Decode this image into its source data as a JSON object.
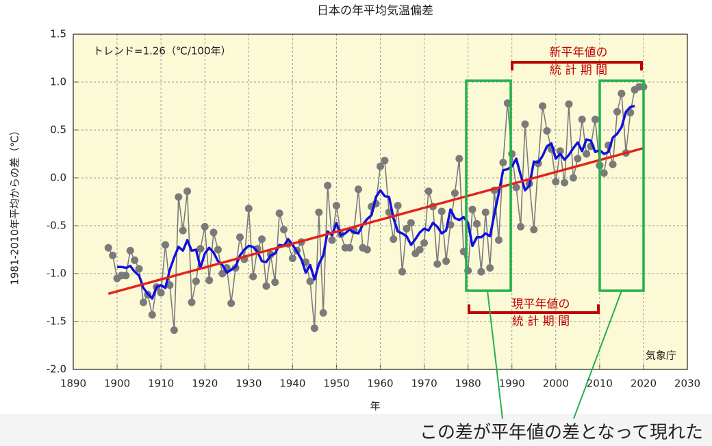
{
  "chart_data": {
    "type": "line",
    "title": "日本の年平均気温偏差",
    "xlabel": "年",
    "ylabel": "1981-2010年平均からの差（℃）",
    "x": [
      1898,
      1899,
      1900,
      1901,
      1902,
      1903,
      1904,
      1905,
      1906,
      1907,
      1908,
      1909,
      1910,
      1911,
      1912,
      1913,
      1914,
      1915,
      1916,
      1917,
      1918,
      1919,
      1920,
      1921,
      1922,
      1923,
      1924,
      1925,
      1926,
      1927,
      1928,
      1929,
      1930,
      1931,
      1932,
      1933,
      1934,
      1935,
      1936,
      1937,
      1938,
      1939,
      1940,
      1941,
      1942,
      1943,
      1944,
      1945,
      1946,
      1947,
      1948,
      1949,
      1950,
      1951,
      1952,
      1953,
      1954,
      1955,
      1956,
      1957,
      1958,
      1959,
      1960,
      1961,
      1962,
      1963,
      1964,
      1965,
      1966,
      1967,
      1968,
      1969,
      1970,
      1971,
      1972,
      1973,
      1974,
      1975,
      1976,
      1977,
      1978,
      1979,
      1980,
      1981,
      1982,
      1983,
      1984,
      1985,
      1986,
      1987,
      1988,
      1989,
      1990,
      1991,
      1992,
      1993,
      1994,
      1995,
      1996,
      1997,
      1998,
      1999,
      2000,
      2001,
      2002,
      2003,
      2004,
      2005,
      2006,
      2007,
      2008,
      2009,
      2010,
      2011,
      2012,
      2013,
      2014,
      2015,
      2016,
      2017,
      2018,
      2019,
      2020
    ],
    "series": [
      {
        "color": "#7a7a7a",
        "markers": true,
        "values": [
          -0.73,
          -0.81,
          -1.05,
          -1.02,
          -1.02,
          -0.76,
          -0.86,
          -0.95,
          -1.3,
          -1.22,
          -1.43,
          -1.14,
          -1.2,
          -0.7,
          -1.12,
          -1.59,
          -0.2,
          -0.55,
          -0.14,
          -1.3,
          -1.08,
          -0.74,
          -0.51,
          -1.07,
          -0.57,
          -0.75,
          -1.0,
          -0.94,
          -1.31,
          -0.94,
          -0.62,
          -0.85,
          -0.32,
          -1.03,
          -0.74,
          -0.64,
          -1.13,
          -0.8,
          -1.09,
          -0.37,
          -0.54,
          -0.69,
          -0.84,
          -0.76,
          -0.67,
          -0.88,
          -1.08,
          -1.57,
          -0.36,
          -1.41,
          -0.08,
          -0.65,
          -0.29,
          -0.59,
          -0.73,
          -0.73,
          -0.55,
          -0.12,
          -0.73,
          -0.75,
          -0.3,
          -0.27,
          0.12,
          0.18,
          -0.36,
          -0.64,
          -0.29,
          -0.98,
          -0.53,
          -0.47,
          -0.79,
          -0.75,
          -0.68,
          -0.14,
          -0.3,
          -0.9,
          -0.35,
          -0.87,
          -0.49,
          -0.16,
          0.2,
          -0.77,
          -0.97,
          -0.33,
          -0.48,
          -0.98,
          -0.36,
          -0.94,
          -0.13,
          -0.65,
          0.16,
          0.78,
          0.25,
          -0.1,
          -0.51,
          0.56,
          -0.06,
          -0.54,
          0.15,
          0.75,
          0.49,
          0.3,
          -0.04,
          0.28,
          -0.05,
          0.77,
          0.0,
          0.2,
          0.61,
          0.25,
          0.33,
          0.61,
          0.13,
          0.05,
          0.34,
          0.14,
          0.69,
          0.88,
          0.26,
          0.68,
          0.92,
          0.95,
          0.95
        ]
      },
      {
        "color": "#1010e0",
        "values": [
          null,
          null,
          -0.93,
          -0.93,
          -0.94,
          -0.92,
          -0.98,
          -1.02,
          -1.15,
          -1.21,
          -1.26,
          -1.14,
          -1.12,
          -1.15,
          -0.96,
          -0.83,
          -0.72,
          -0.76,
          -0.65,
          -0.76,
          -0.75,
          -0.94,
          -0.79,
          -0.73,
          -0.78,
          -0.87,
          -0.91,
          -0.99,
          -0.96,
          -0.93,
          -0.81,
          -0.75,
          -0.71,
          -0.72,
          -0.77,
          -0.87,
          -0.88,
          -0.81,
          -0.79,
          -0.7,
          -0.71,
          -0.64,
          -0.7,
          -0.77,
          -0.85,
          -0.99,
          -0.91,
          -1.06,
          -0.9,
          -0.81,
          -0.56,
          -0.6,
          -0.47,
          -0.6,
          -0.58,
          -0.54,
          -0.57,
          -0.58,
          -0.49,
          -0.43,
          -0.39,
          -0.2,
          -0.13,
          -0.19,
          -0.2,
          -0.42,
          -0.56,
          -0.58,
          -0.61,
          -0.7,
          -0.64,
          -0.57,
          -0.53,
          -0.55,
          -0.47,
          -0.51,
          -0.58,
          -0.55,
          -0.33,
          -0.42,
          -0.44,
          -0.41,
          -0.47,
          -0.71,
          -0.62,
          -0.62,
          -0.58,
          -0.61,
          -0.38,
          -0.16,
          0.08,
          0.09,
          0.12,
          0.2,
          0.03,
          -0.13,
          -0.08,
          0.17,
          0.16,
          0.23,
          0.33,
          0.36,
          0.2,
          0.25,
          0.19,
          0.24,
          0.31,
          0.37,
          0.28,
          0.4,
          0.39,
          0.27,
          0.29,
          0.25,
          0.27,
          0.42,
          0.46,
          0.53,
          0.69,
          0.74,
          0.75,
          null,
          null
        ]
      },
      {
        "color": "#e3221c",
        "x": [
          1898,
          2020
        ],
        "values": [
          -1.21,
          0.31
        ]
      }
    ],
    "xlim": [
      1890,
      2030
    ],
    "ylim": [
      -2.0,
      1.5
    ],
    "xticks": [
      1890,
      1900,
      1910,
      1920,
      1930,
      1940,
      1950,
      1960,
      1970,
      1980,
      1990,
      2000,
      2010,
      2020,
      2030
    ],
    "yticks": [
      1.5,
      {
        "value": 1.0,
        "label": "1.0"
      },
      0.5,
      {
        "value": 0.0,
        "label": "0.0"
      },
      -0.5,
      {
        "value": -1.0,
        "label": "-1.0"
      },
      -1.5,
      {
        "value": -2.0,
        "label": "-2.0"
      }
    ],
    "grid": true,
    "annotations": {
      "trend": "トレンド=1.26（℃/100年）",
      "source": "気象庁",
      "new_period_1": "新平年値の",
      "new_period_2": "統 計 期 間",
      "current_period_1": "現平年値の",
      "current_period_2": "統 計 期 間",
      "note": "この差が平年値の差となって現れた"
    }
  }
}
